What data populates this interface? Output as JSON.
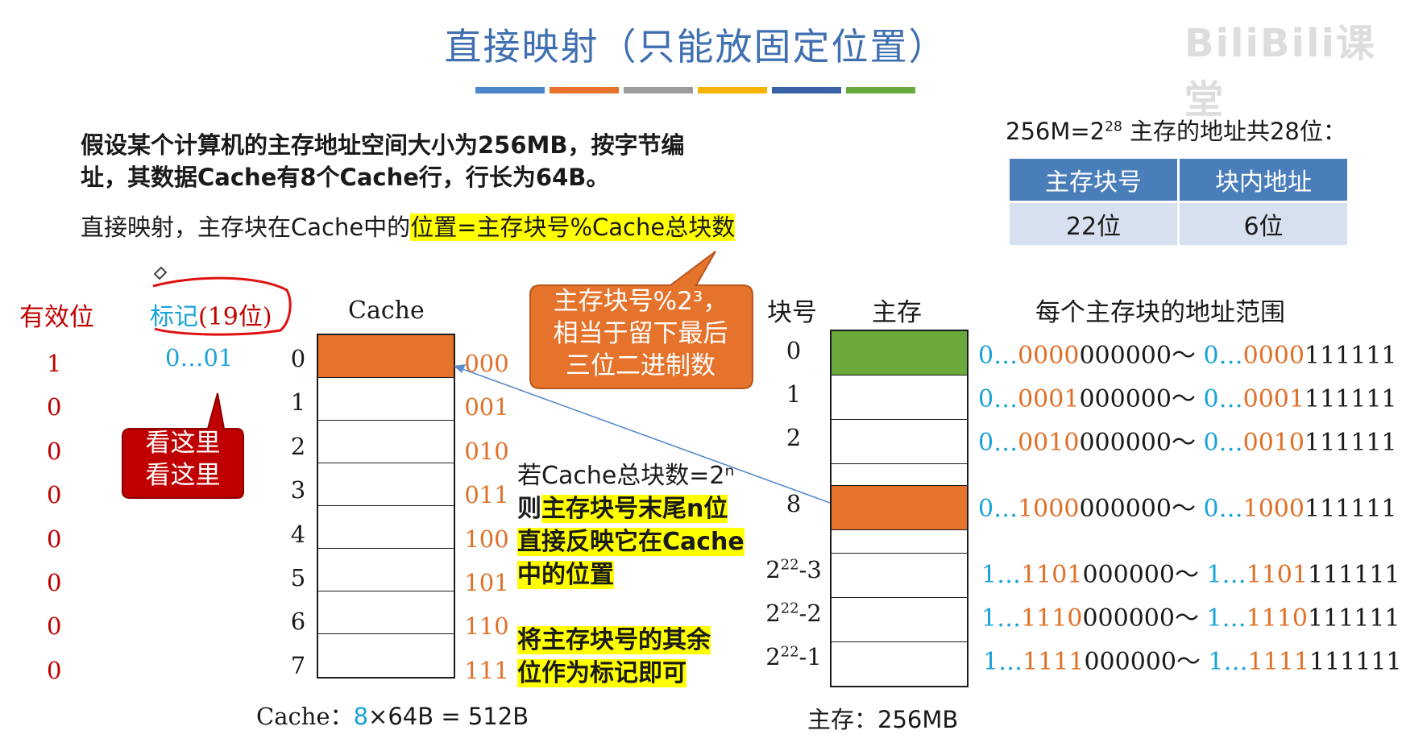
{
  "title": "直接映射（只能放固定位置）",
  "title_bar_colors": [
    "#4a86c8",
    "#e5732c",
    "#9c9c9c",
    "#f5b300",
    "#3a62a8",
    "#6aaa3c"
  ],
  "intro_line1": "假设某个计算机的主存地址空间大小为256MB，按字节编",
  "intro_line2": "址，其数据Cache有8个Cache行，行长为64B。",
  "rule_prefix": "直接映射，主存块在Cache中的",
  "rule_highlight": "位置=主存块号%Cache总块数",
  "addr_title_prefix": "256M=2",
  "addr_title_exp": "28",
  "addr_title_suffix": " 主存的地址共28位：",
  "addr_table": {
    "headers": [
      "主存块号",
      "块内地址"
    ],
    "values": [
      "22位",
      "6位"
    ]
  },
  "valid_label": "有效位",
  "tag_label_prefix": "标记",
  "tag_label_paren": "(19位)",
  "tag_value": "0…01",
  "valid_bits": [
    "1",
    "0",
    "0",
    "0",
    "0",
    "0",
    "0",
    "0"
  ],
  "look_bubble": [
    "看这里",
    "看这里"
  ],
  "cache_label": "Cache",
  "cache_rows": [
    {
      "index": "0",
      "bin": "000",
      "filled": true
    },
    {
      "index": "1",
      "bin": "001",
      "filled": false
    },
    {
      "index": "2",
      "bin": "010",
      "filled": false
    },
    {
      "index": "3",
      "bin": "011",
      "filled": false
    },
    {
      "index": "4",
      "bin": "100",
      "filled": false
    },
    {
      "index": "5",
      "bin": "101",
      "filled": false
    },
    {
      "index": "6",
      "bin": "110",
      "filled": false
    },
    {
      "index": "7",
      "bin": "111",
      "filled": false
    }
  ],
  "cache_caption_prefix": "Cache：",
  "cache_caption_count": "8",
  "cache_caption_suffix": "×64B = 512B",
  "mod_bubble": [
    "主存块号%2³，",
    "相当于留下最后",
    "三位二进制数"
  ],
  "note1_plain": "若Cache总块数=2ⁿ",
  "note1_pre": "则",
  "note1_hl1": "主存块号末尾n位",
  "note1_hl2": "直接反映它在Cache",
  "note1_hl3": "中的位置",
  "note2_line1": "将主存块号的其余",
  "note2_line2": "位作为标记即可",
  "block_no_label": "块号",
  "mem_label": "主存",
  "range_label": "每个主存块的地址范围",
  "mem_blocks": [
    {
      "no": "0",
      "exp": "",
      "fill": "green",
      "r1a": "0…",
      "r1b": "0000",
      "r1c": "000000",
      "r2a": "0…",
      "r2b": "0000",
      "r2c": "111111"
    },
    {
      "no": "1",
      "exp": "",
      "fill": "none",
      "r1a": "0…",
      "r1b": "0001",
      "r1c": "000000",
      "r2a": "0…",
      "r2b": "0001",
      "r2c": "111111"
    },
    {
      "no": "2",
      "exp": "",
      "fill": "none",
      "r1a": "0…",
      "r1b": "0010",
      "r1c": "000000",
      "r2a": "0…",
      "r2b": "0010",
      "r2c": "111111"
    },
    {
      "no": "8",
      "exp": "",
      "fill": "orange",
      "r1a": "0…",
      "r1b": "1000",
      "r1c": "000000",
      "r2a": "0…",
      "r2b": "1000",
      "r2c": "111111"
    },
    {
      "no": "2",
      "exp": "22",
      "suffix": "-3",
      "fill": "none",
      "r1a": "1…",
      "r1b": "1101",
      "r1c": "000000",
      "r2a": "1…",
      "r2b": "1101",
      "r2c": "111111"
    },
    {
      "no": "2",
      "exp": "22",
      "suffix": "-2",
      "fill": "none",
      "r1a": "1…",
      "r1b": "1110",
      "r1c": "000000",
      "r2a": "1…",
      "r2b": "1110",
      "r2c": "111111"
    },
    {
      "no": "2",
      "exp": "22",
      "suffix": "-1",
      "fill": "none",
      "r1a": "1…",
      "r1b": "1111",
      "r1c": "000000",
      "r2a": "1…",
      "r2b": "1111",
      "r2c": "111111"
    }
  ],
  "range_sep": "～",
  "mem_caption": "主存：256MB",
  "watermark": "BiliBili课堂",
  "colors": {
    "orange": "#e5732c",
    "green": "#6aaa3c",
    "red": "#c00000",
    "blue": "#1aa3d8",
    "highlight": "#ffff00"
  }
}
